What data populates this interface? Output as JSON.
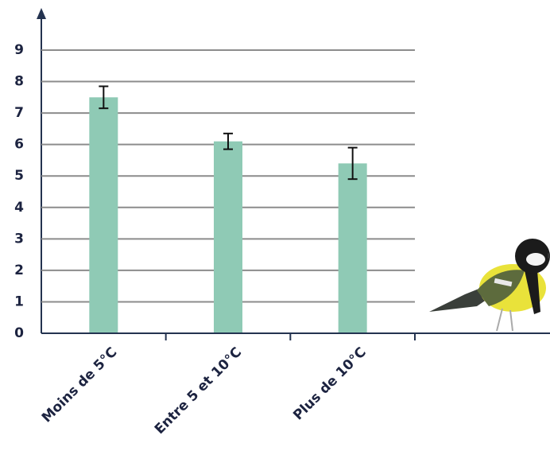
{
  "chart_data": {
    "type": "bar",
    "categories": [
      "Moins de 5°C",
      "Entre 5 et 10°C",
      "Plus de 10°C"
    ],
    "values": [
      7.5,
      6.1,
      5.4
    ],
    "errors": [
      0.35,
      0.25,
      0.5
    ],
    "color": "#8fcab5",
    "ylim": [
      0,
      9
    ],
    "yticks": [
      0,
      1,
      2,
      3,
      4,
      5,
      6,
      7,
      8,
      9
    ],
    "grid": true
  }
}
